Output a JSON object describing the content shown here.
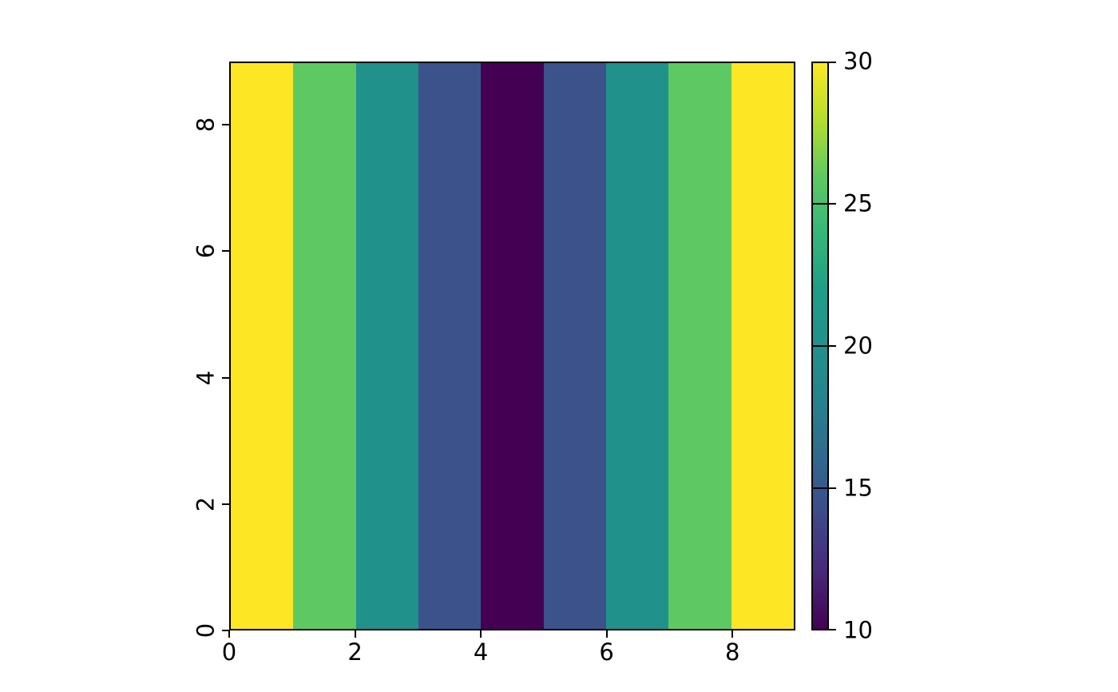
{
  "chart_data": {
    "type": "heatmap",
    "title": "",
    "xlabel": "",
    "ylabel": "",
    "x_range": [
      0,
      9
    ],
    "y_range": [
      0,
      9
    ],
    "grid": false,
    "legend": "none",
    "x_tick_values": [
      0,
      2,
      4,
      6,
      8
    ],
    "x_tick_labels": [
      "0",
      "2",
      "4",
      "6",
      "8"
    ],
    "y_tick_values": [
      0,
      2,
      4,
      6,
      8
    ],
    "y_tick_labels": [
      "0",
      "2",
      "4",
      "6",
      "8"
    ],
    "y_tick_label_rotation_deg": 90,
    "columns": {
      "x_edges": [
        0,
        1,
        2,
        3,
        4,
        5,
        6,
        7,
        8,
        9
      ],
      "values": [
        30,
        25,
        20,
        15,
        10,
        15,
        20,
        25,
        30
      ],
      "constant_along_y": true
    },
    "value_colors": {
      "10": "#440154",
      "15": "#3b528b",
      "20": "#21918c",
      "25": "#5ec962",
      "30": "#fde725"
    },
    "colorbar": {
      "min": 10,
      "max": 30,
      "tick_values": [
        10,
        15,
        20,
        25,
        30
      ],
      "tick_labels": [
        "10",
        "15",
        "20",
        "25",
        "30"
      ],
      "colormap": "viridis",
      "orientation": "vertical",
      "position": "right",
      "gradient_stops_bottom_to_top": [
        "#440154",
        "#482878",
        "#3e4989",
        "#31688e",
        "#26828e",
        "#21918c",
        "#1f9e89",
        "#35b779",
        "#5ec962",
        "#b5de2b",
        "#fde725"
      ]
    },
    "background_color": "#ffffff",
    "spine_color": "#000000"
  }
}
